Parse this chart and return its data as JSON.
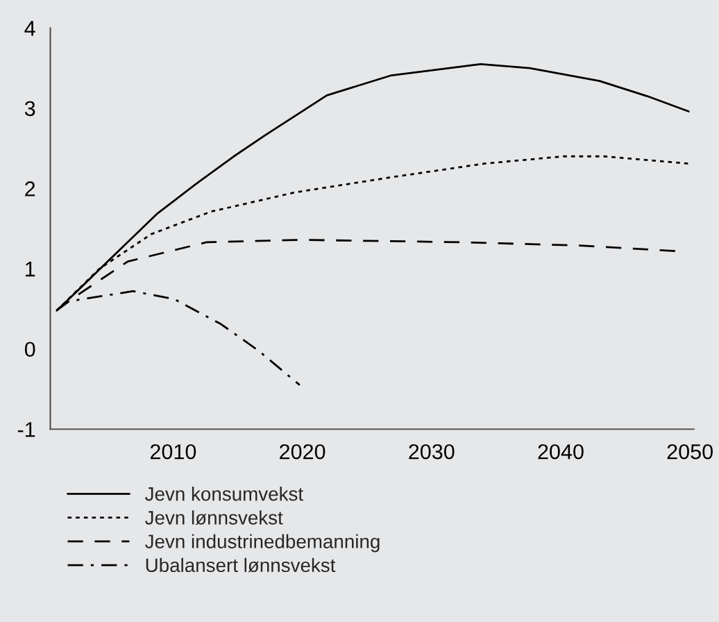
{
  "chart_data": {
    "type": "line",
    "xlim": [
      2000.5,
      2050.3
    ],
    "xticks": [
      2010,
      2020,
      2030,
      2040,
      2050
    ],
    "ylim": [
      -1,
      4
    ],
    "yticks": [
      -1,
      0,
      1,
      2,
      3,
      4
    ],
    "grid": false,
    "legend": "bottom",
    "series": [
      {
        "name": "Jevn konsumvekst",
        "color": "#000000",
        "line_style": "solid",
        "x": [
          2001,
          2002.7,
          2005,
          2008.8,
          2011.8,
          2014.7,
          2017.1,
          2021.9,
          2026.9,
          2033.8,
          2037.6,
          2043,
          2046.7,
          2049.9
        ],
        "values": [
          0.48,
          0.74,
          1.1,
          1.69,
          2.06,
          2.4,
          2.66,
          3.16,
          3.41,
          3.55,
          3.5,
          3.34,
          3.15,
          2.96
        ]
      },
      {
        "name": "Jevn lønnsvekst",
        "color": "#000000",
        "line_style": "dotted",
        "x": [
          2001,
          2004.3,
          2008.3,
          2012.9,
          2019.4,
          2026.9,
          2034.1,
          2040.2,
          2043.4,
          2049.9
        ],
        "values": [
          0.48,
          1.0,
          1.43,
          1.71,
          1.95,
          2.14,
          2.31,
          2.4,
          2.4,
          2.31
        ]
      },
      {
        "name": "Jevn industrinedbemanning",
        "color": "#000000",
        "line_style": "dashed",
        "x": [
          2001,
          2002.4,
          2006.5,
          2012.6,
          2019.8,
          2032.3,
          2041.3,
          2048.9
        ],
        "values": [
          0.48,
          0.65,
          1.09,
          1.33,
          1.36,
          1.33,
          1.29,
          1.22
        ]
      },
      {
        "name": "Ubalansert lønnsvekst",
        "color": "#000000",
        "line_style": "dashdot",
        "x": [
          2001,
          2001.8,
          2006.9,
          2010.1,
          2013.7,
          2016.6,
          2019.8
        ],
        "values": [
          0.48,
          0.59,
          0.72,
          0.62,
          0.31,
          -0.02,
          -0.45
        ]
      }
    ]
  }
}
